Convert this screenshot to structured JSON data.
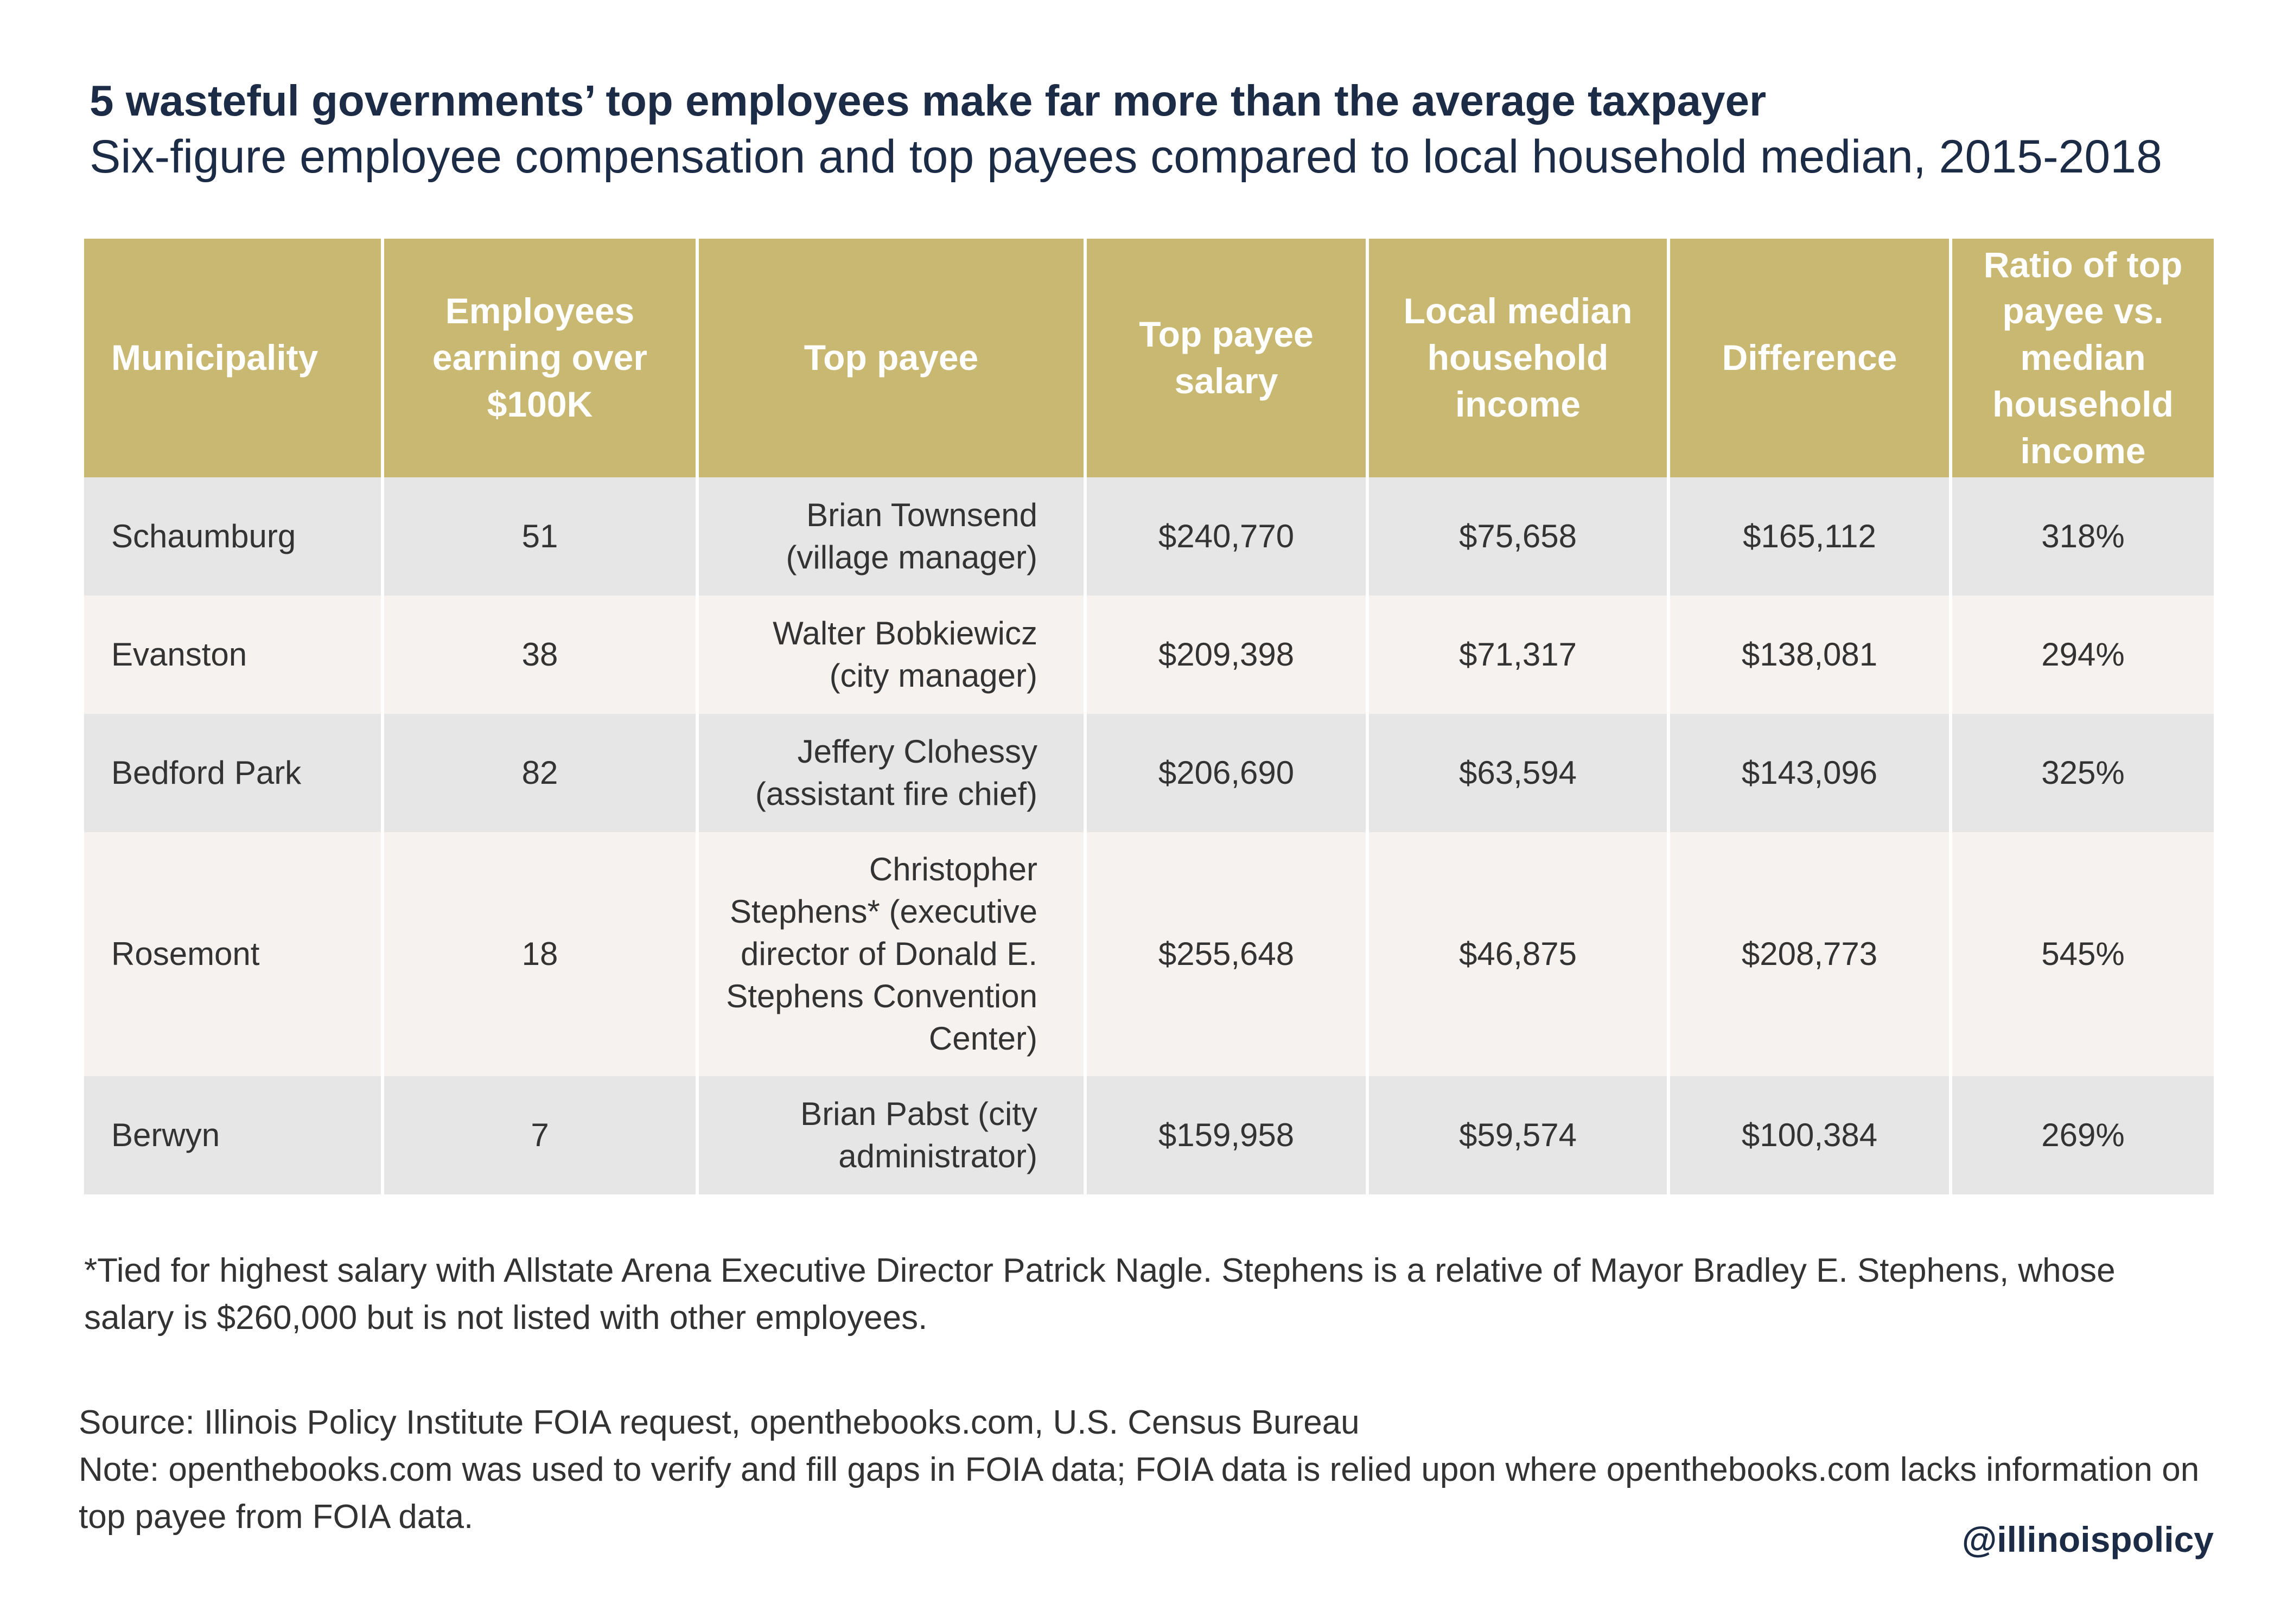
{
  "title": "5 wasteful governments’ top employees make far more than the average taxpayer",
  "subtitle": "Six-figure employee compensation and top payees compared to local household median, 2015-2018",
  "chart_data": {
    "type": "table",
    "columns": [
      "Municipality",
      "Employees earning over $100K",
      "Top payee",
      "Top payee salary",
      "Local median household income",
      "Difference",
      "Ratio of top payee vs. median household income"
    ],
    "rows": [
      [
        "Schaumburg",
        "51",
        "Brian Townsend (village manager)",
        "$240,770",
        "$75,658",
        "$165,112",
        "318%"
      ],
      [
        "Evanston",
        "38",
        "Walter Bobkiewicz (city manager)",
        "$209,398",
        "$71,317",
        "$138,081",
        "294%"
      ],
      [
        "Bedford Park",
        "82",
        "Jeffery Clohessy (assistant fire chief)",
        "$206,690",
        "$63,594",
        "$143,096",
        "325%"
      ],
      [
        "Rosemont",
        "18",
        "Christopher Stephens* (executive director of Donald E. Stephens Convention Center)",
        "$255,648",
        "$46,875",
        "$208,773",
        "545%"
      ],
      [
        "Berwyn",
        "7",
        "Brian Pabst (city administrator)",
        "$159,958",
        "$59,574",
        "$100,384",
        "269%"
      ]
    ]
  },
  "footnote": "*Tied for highest salary with Allstate Arena Executive Director Patrick Nagle. Stephens is a relative of Mayor Bradley E. Stephens, whose salary is $260,000 but is not listed with other employees.",
  "source": "Source: Illinois Policy Institute FOIA request, openthebooks.com, U.S. Census Bureau",
  "note": "Note: openthebooks.com was used to verify and fill gaps in FOIA data; FOIA data is relied upon where openthebooks.com lacks information on top payee from FOIA data.",
  "handle": "@illinoispolicy",
  "colors": {
    "header_bg": "#c8b872",
    "title": "#1c2b46",
    "row_odd": "#e6e6e6",
    "row_even": "#f5f2ef"
  }
}
